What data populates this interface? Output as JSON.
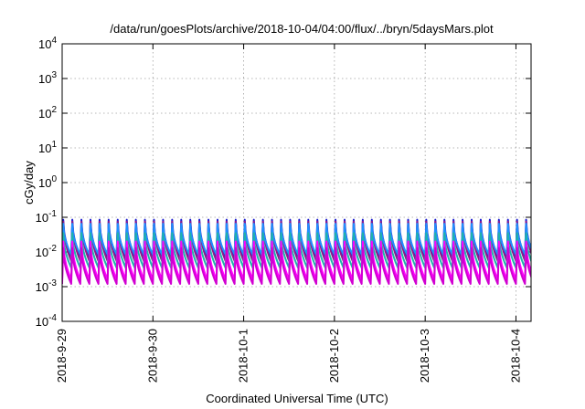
{
  "chart_data": {
    "type": "line",
    "title": "/data/run/goesPlots/archive/2018-10-04/04:00/flux/../bryn/5daysMars.plot",
    "xlabel": "Coordinated Universal Time (UTC)",
    "ylabel": "cGy/day",
    "yscale": "log",
    "ylim": [
      0.0001,
      10000
    ],
    "y_ticks": [
      {
        "base": "10",
        "exp": "-4",
        "value": 0.0001
      },
      {
        "base": "10",
        "exp": "-3",
        "value": 0.001
      },
      {
        "base": "10",
        "exp": "-2",
        "value": 0.01
      },
      {
        "base": "10",
        "exp": "-1",
        "value": 0.1
      },
      {
        "base": "10",
        "exp": "0",
        "value": 1
      },
      {
        "base": "10",
        "exp": "1",
        "value": 10
      },
      {
        "base": "10",
        "exp": "2",
        "value": 100
      },
      {
        "base": "10",
        "exp": "3",
        "value": 1000
      },
      {
        "base": "10",
        "exp": "4",
        "value": 10000
      }
    ],
    "x_ticks": [
      "2018-9-29",
      "2018-9-30",
      "2018-10-1",
      "2018-10-2",
      "2018-10-3",
      "2018-10-4"
    ],
    "xlim": [
      "2018-09-29T00:00",
      "2018-10-04T04:00"
    ],
    "grid": true,
    "legend": "none",
    "cycles_per_day": 10,
    "series": [
      {
        "color": "#1a1acd",
        "peak": 0.085,
        "trough": 0.0075
      },
      {
        "color": "#8b1a8b",
        "peak": 0.075,
        "trough": 0.0055
      },
      {
        "color": "#1e90ff",
        "peak": 0.065,
        "trough": 0.0085
      },
      {
        "color": "#20b2aa",
        "peak": 0.035,
        "trough": 0.0035
      },
      {
        "color": "#ff00ff",
        "peak": 0.02,
        "trough": 0.0016
      },
      {
        "color": "#d100d1",
        "peak": 0.013,
        "trough": 0.0012
      }
    ]
  }
}
